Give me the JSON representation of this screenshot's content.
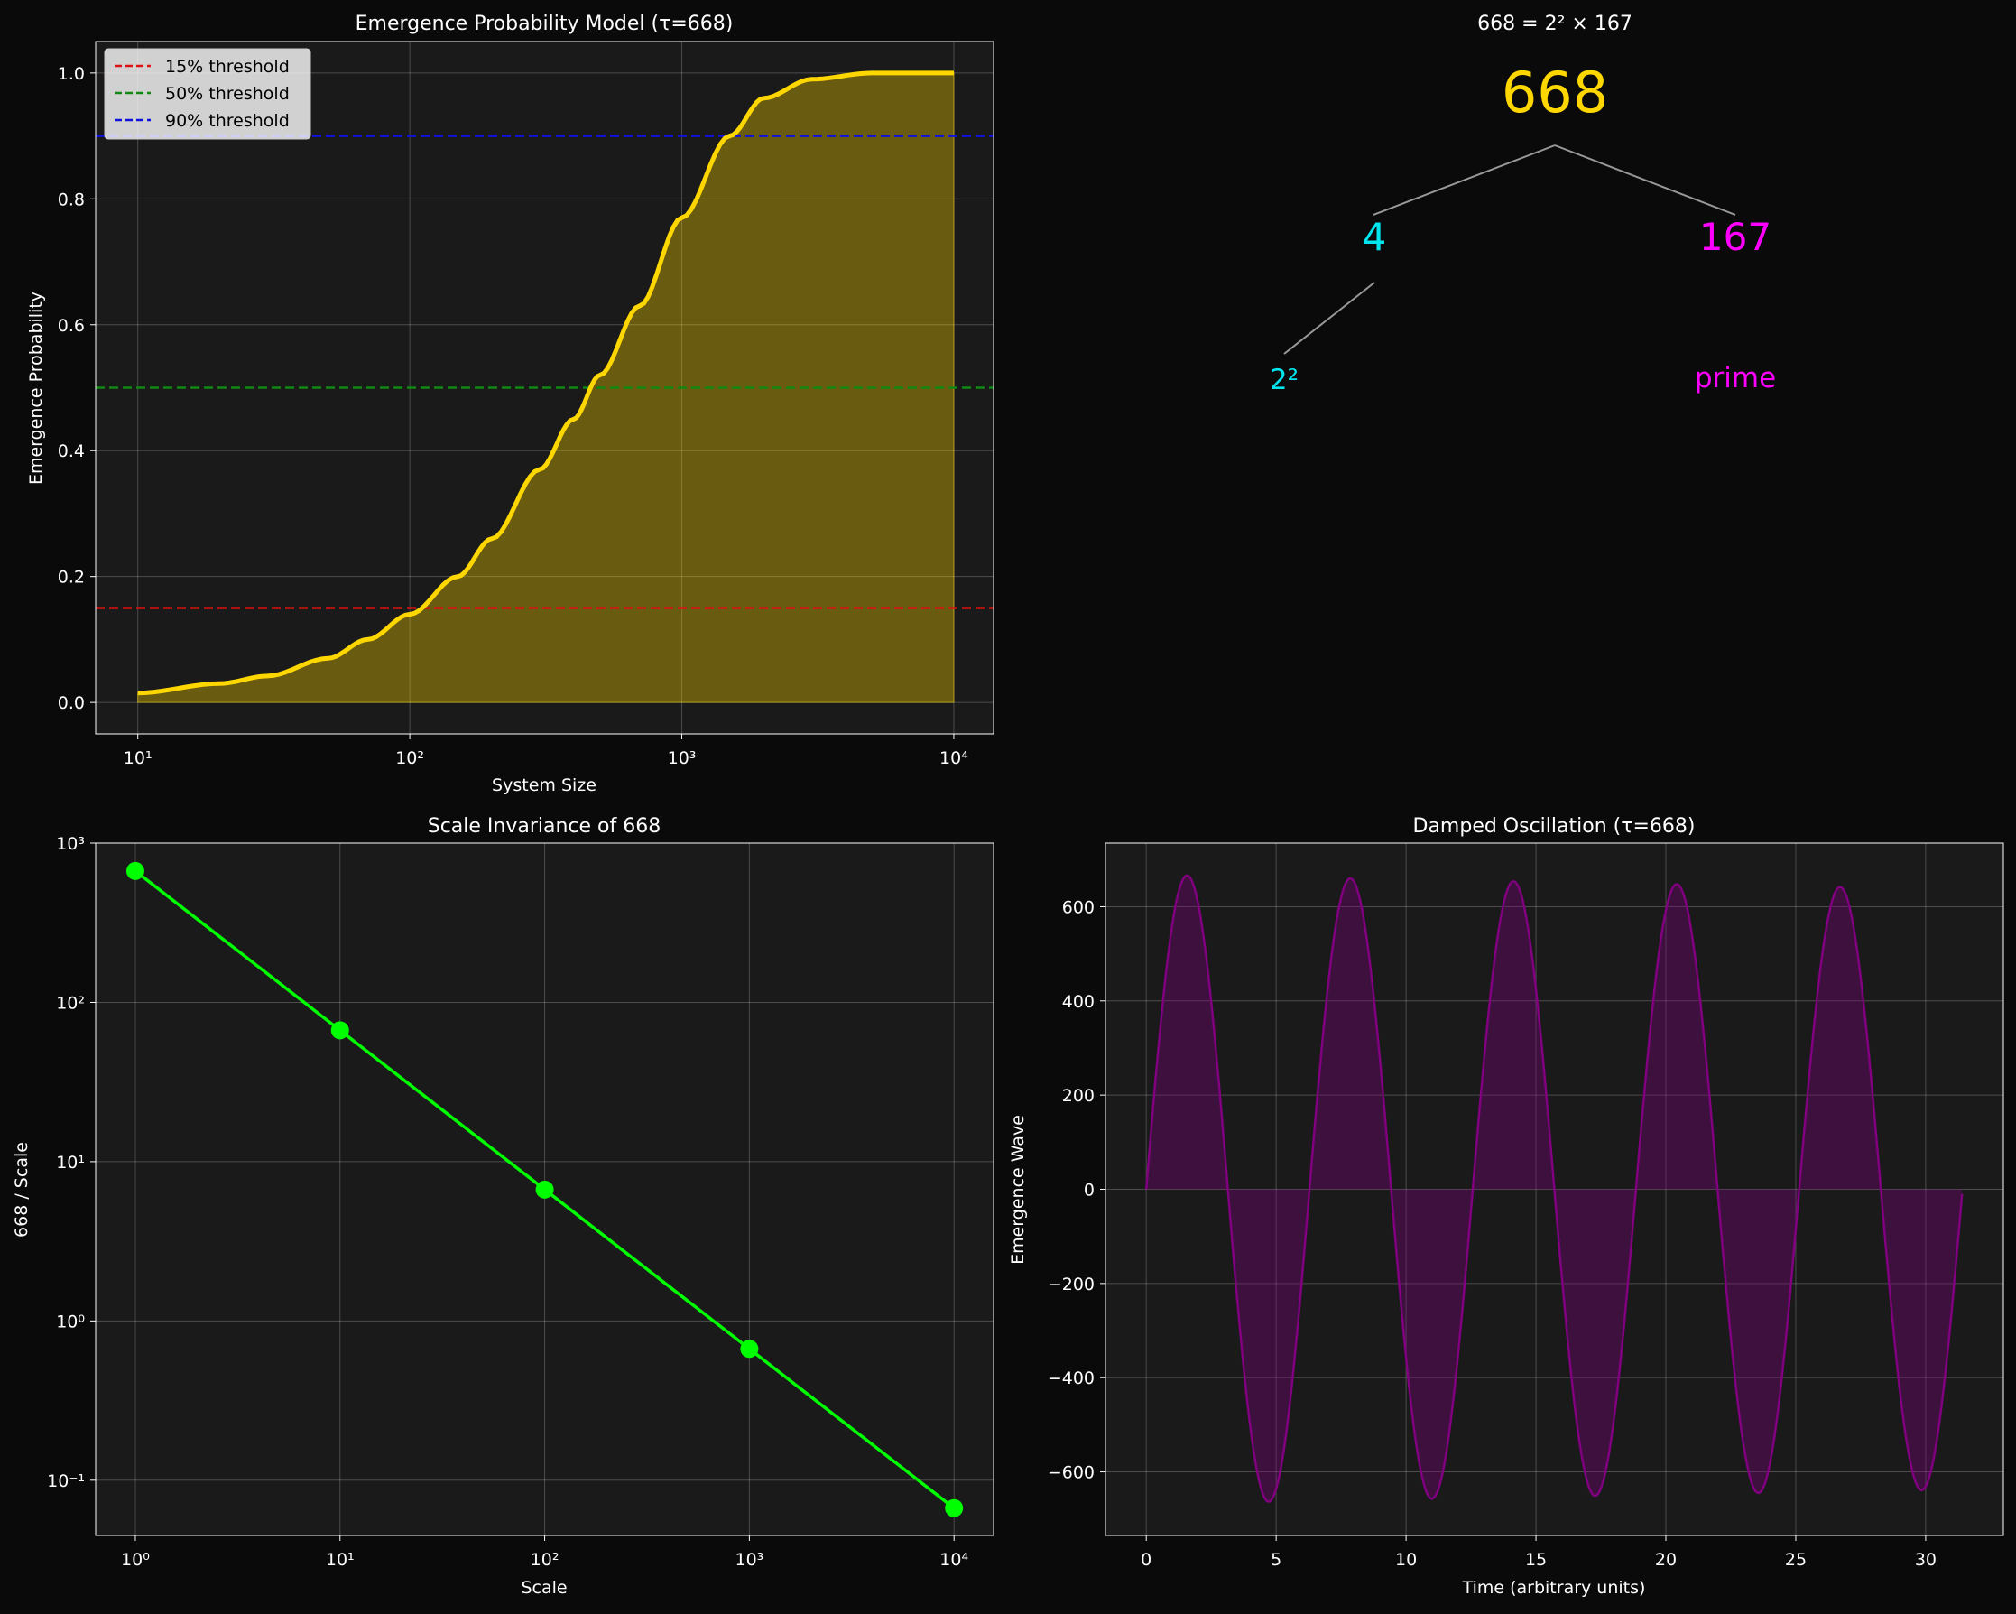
{
  "colors": {
    "figure_bg": "#0a0a0a",
    "axes_bg": "#1a1a1a",
    "text": "#ffffff",
    "grid": "#555555",
    "gold": "#ffd700",
    "cyan": "#00e5ee",
    "magenta": "#ff00ff",
    "green": "#00ff00",
    "purple": "#800080",
    "tree_line": "#999999"
  },
  "chart_data": [
    {
      "type": "area",
      "title": "Emergence Probability Model (τ=668)",
      "xlabel": "System Size",
      "ylabel": "Emergence Probability",
      "xscale": "log",
      "xlim": [
        7,
        14000
      ],
      "ylim": [
        -0.05,
        1.05
      ],
      "xtick_values": [
        10,
        100,
        1000,
        10000
      ],
      "xtick_labels": [
        "10¹",
        "10²",
        "10³",
        "10⁴"
      ],
      "ytick_values": [
        0.0,
        0.2,
        0.4,
        0.6,
        0.8,
        1.0
      ],
      "ytick_labels": [
        "0.0",
        "0.2",
        "0.4",
        "0.6",
        "0.8",
        "1.0"
      ],
      "grid": true,
      "legend_loc": "upper-left",
      "series": {
        "x": [
          10,
          20,
          30,
          50,
          70,
          100,
          150,
          200,
          300,
          400,
          500,
          700,
          1000,
          1500,
          2000,
          3000,
          5000,
          10000
        ],
        "y": [
          0.015,
          0.03,
          0.042,
          0.07,
          0.1,
          0.14,
          0.2,
          0.26,
          0.37,
          0.45,
          0.52,
          0.63,
          0.77,
          0.9,
          0.96,
          0.99,
          1.0,
          1.0
        ],
        "color": "#ffd700"
      },
      "thresholds": [
        {
          "label": "15% threshold",
          "value": 0.15,
          "color": "#dd1111"
        },
        {
          "label": "50% threshold",
          "value": 0.5,
          "color": "#118811"
        },
        {
          "label": "90% threshold",
          "value": 0.9,
          "color": "#1111dd"
        }
      ]
    },
    {
      "type": "diagram",
      "title": "668 = 2² × 167",
      "root": "668",
      "left": "4",
      "right": "167",
      "left_sub": "2²",
      "right_sub": "prime"
    },
    {
      "type": "line",
      "title": "Scale Invariance of 668",
      "xlabel": "Scale",
      "ylabel": "668 / Scale",
      "xscale": "log",
      "yscale": "log",
      "xlim": [
        0.64,
        15600
      ],
      "ylim": [
        0.045,
        1000
      ],
      "xtick_values": [
        1,
        10,
        100,
        1000,
        10000
      ],
      "xtick_labels": [
        "10⁰",
        "10¹",
        "10²",
        "10³",
        "10⁴"
      ],
      "ytick_values": [
        0.1,
        1,
        10,
        100,
        1000
      ],
      "ytick_labels": [
        "10⁻¹",
        "10⁰",
        "10¹",
        "10²",
        "10³"
      ],
      "grid": true,
      "x": [
        1,
        10,
        100,
        1000,
        10000
      ],
      "y": [
        668,
        66.8,
        6.68,
        0.668,
        0.0668
      ],
      "color": "#00ff00"
    },
    {
      "type": "area",
      "title": "Damped Oscillation (τ=668)",
      "xlabel": "Time (arbitrary units)",
      "ylabel": "Emergence Wave",
      "xlim": [
        -1.57,
        32.99
      ],
      "ylim": [
        -735,
        735
      ],
      "xtick_values": [
        0,
        5,
        10,
        15,
        20,
        25,
        30
      ],
      "xtick_labels": [
        "0",
        "5",
        "10",
        "15",
        "20",
        "25",
        "30"
      ],
      "ytick_values": [
        -600,
        -400,
        -200,
        0,
        200,
        400,
        600
      ],
      "ytick_labels": [
        "−600",
        "−400",
        "−200",
        "0",
        "200",
        "400",
        "600"
      ],
      "grid": true,
      "function": "668 * exp(-t/668) * sin(t)",
      "t_range": [
        0,
        31.4
      ],
      "samples": 600,
      "color": "#800080"
    }
  ]
}
